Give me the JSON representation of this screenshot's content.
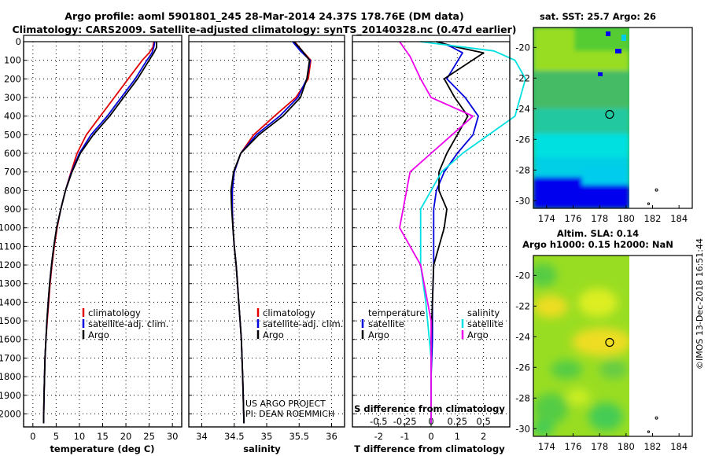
{
  "title": {
    "line1": "Argo profile: aoml 5901801_245 28-Mar-2014 24.37S 178.76E (DM data)",
    "line2": "Climatology: CARS2009. Satellite-adjusted climatology: synTS_20140328.nc (0.47d earlier)"
  },
  "credits": {
    "project": "US ARGO PROJECT",
    "pi": "PI: DEAN ROEMMICH"
  },
  "copyright": "©IMOS 13-Dec-2018 16:51:44",
  "colors": {
    "climatology": "#e00000",
    "satellite": "#0000dd",
    "argo": "#000000",
    "sat_sal": "#00e0e0",
    "argo_sal": "#ee00ee"
  },
  "chart_data": [
    {
      "type": "line",
      "name": "temperature-profile",
      "xlabel": "temperature (deg C)",
      "xlim": [
        -2,
        32
      ],
      "xticks": [
        0,
        5,
        10,
        15,
        20,
        25,
        30
      ],
      "ylim": [
        0,
        2070
      ],
      "yticks": [
        0,
        100,
        200,
        300,
        400,
        500,
        600,
        700,
        800,
        900,
        1000,
        1100,
        1200,
        1300,
        1400,
        1500,
        1600,
        1700,
        1800,
        1900,
        2000
      ],
      "legend": [
        "climatology",
        "satellite-adj. clim.",
        "Argo"
      ],
      "series": [
        {
          "name": "climatology",
          "color": "#e00000",
          "x": [
            26.0,
            25.8,
            25.0,
            23.5,
            20.5,
            17.5,
            14.5,
            11.5,
            9.5,
            8.2,
            7.0,
            6.0,
            5.2,
            4.6,
            4.1,
            3.7,
            3.4,
            3.1,
            2.8,
            2.6,
            2.4,
            2.3
          ],
          "y": [
            0,
            30,
            60,
            100,
            200,
            300,
            400,
            500,
            600,
            700,
            800,
            900,
            1000,
            1100,
            1200,
            1300,
            1400,
            1500,
            1600,
            1700,
            1900,
            2050
          ]
        },
        {
          "name": "satellite-adj. clim.",
          "color": "#0000dd",
          "x": [
            26.2,
            26.0,
            25.6,
            24.5,
            22.0,
            19.0,
            16.0,
            12.5,
            10.0,
            8.3,
            7.0,
            6.0,
            5.1,
            4.5,
            4.0,
            3.6,
            3.3,
            3.0,
            2.8,
            2.6,
            2.4,
            2.3
          ],
          "y": [
            0,
            30,
            60,
            100,
            200,
            300,
            400,
            500,
            600,
            700,
            800,
            900,
            1000,
            1100,
            1200,
            1300,
            1400,
            1500,
            1600,
            1700,
            1900,
            2050
          ]
        },
        {
          "name": "Argo",
          "color": "#000000",
          "x": [
            26.6,
            26.6,
            26.0,
            25.0,
            22.5,
            19.5,
            16.5,
            13.0,
            10.2,
            8.4,
            7.0,
            6.0,
            5.1,
            4.5,
            4.0,
            3.6,
            3.3,
            3.0,
            2.8,
            2.6,
            2.4,
            2.3
          ],
          "y": [
            0,
            30,
            60,
            100,
            200,
            300,
            400,
            500,
            600,
            700,
            800,
            900,
            1000,
            1100,
            1200,
            1300,
            1400,
            1500,
            1600,
            1700,
            1900,
            2050
          ]
        }
      ]
    },
    {
      "type": "line",
      "name": "salinity-profile",
      "xlabel": "salinity",
      "xlim": [
        33.8,
        36.2
      ],
      "xticks": [
        34,
        34.5,
        35,
        35.5,
        36
      ],
      "ylim": [
        0,
        2070
      ],
      "legend": [
        "climatology",
        "satellite-adj. clim.",
        "Argo"
      ],
      "series": [
        {
          "name": "climatology",
          "color": "#e00000",
          "x": [
            35.43,
            35.55,
            35.68,
            35.64,
            35.45,
            35.12,
            34.8,
            34.6,
            34.5,
            34.47,
            34.47,
            34.48,
            34.5,
            34.53,
            34.55,
            34.57,
            34.59,
            34.61,
            34.63,
            34.65
          ],
          "y": [
            0,
            50,
            100,
            200,
            300,
            400,
            500,
            600,
            700,
            800,
            900,
            1000,
            1100,
            1200,
            1300,
            1400,
            1500,
            1600,
            1800,
            2050
          ]
        },
        {
          "name": "satellite-adj. clim.",
          "color": "#0000dd",
          "x": [
            35.4,
            35.52,
            35.67,
            35.62,
            35.48,
            35.2,
            34.84,
            34.6,
            34.5,
            34.47,
            34.47,
            34.48,
            34.5,
            34.53,
            34.55,
            34.57,
            34.59,
            34.61,
            34.63,
            34.65
          ],
          "y": [
            0,
            50,
            100,
            200,
            300,
            400,
            500,
            600,
            700,
            800,
            900,
            1000,
            1100,
            1200,
            1300,
            1400,
            1500,
            1600,
            1800,
            2050
          ]
        },
        {
          "name": "Argo",
          "color": "#000000",
          "x": [
            35.42,
            35.55,
            35.66,
            35.62,
            35.52,
            35.25,
            34.88,
            34.6,
            34.49,
            34.45,
            34.46,
            34.48,
            34.5,
            34.53,
            34.55,
            34.57,
            34.59,
            34.61,
            34.63,
            34.65
          ],
          "y": [
            0,
            50,
            100,
            200,
            300,
            400,
            500,
            600,
            700,
            800,
            900,
            1000,
            1100,
            1200,
            1300,
            1400,
            1500,
            1600,
            1800,
            2050
          ]
        }
      ]
    },
    {
      "type": "line",
      "name": "difference-profile",
      "xlabel": "T difference from climatology",
      "xlim": [
        -3,
        3
      ],
      "xticks": [
        -2,
        -1,
        0,
        1,
        2
      ],
      "x2label": "S difference from climatology",
      "x2ticks": [
        "-0.5",
        "-0.25",
        "0",
        "0.25",
        "0.5"
      ],
      "ylim": [
        0,
        2070
      ],
      "legend": {
        "temperature_title": "temperature",
        "salinity_title": "salinity",
        "temperature": [
          "satellite",
          "Argo"
        ],
        "salinity": [
          "satellite",
          "Argo"
        ]
      },
      "series": [
        {
          "name": "T satellite",
          "color": "#0000dd",
          "x": [
            0.3,
            0.8,
            1.2,
            0.6,
            1.3,
            1.8,
            1.6,
            1.0,
            0.5,
            0.2,
            0.1,
            0.1,
            0.1,
            0.05,
            0.05,
            0.0,
            0.0
          ],
          "y": [
            0,
            30,
            60,
            200,
            300,
            400,
            500,
            600,
            700,
            800,
            900,
            1000,
            1200,
            1400,
            1600,
            1800,
            2050
          ]
        },
        {
          "name": "T Argo",
          "color": "#000000",
          "x": [
            0.2,
            1.0,
            2.0,
            0.5,
            0.9,
            1.4,
            1.0,
            0.6,
            0.3,
            0.3,
            0.6,
            0.5,
            0.1,
            0.05,
            0.0,
            0.0,
            0.0
          ],
          "y": [
            0,
            30,
            60,
            200,
            300,
            400,
            500,
            600,
            700,
            800,
            900,
            1000,
            1200,
            1400,
            1600,
            1800,
            2050
          ]
        },
        {
          "name": "S satellite",
          "color": "#00e0e0",
          "x": [
            -0.1,
            0.6,
            0.8,
            0.9,
            0.8,
            0.3,
            0.1,
            0.0,
            -0.1,
            -0.1,
            -0.1,
            -0.05,
            0.0,
            0.0
          ],
          "y": [
            0,
            50,
            100,
            200,
            400,
            600,
            700,
            800,
            900,
            1000,
            1200,
            1400,
            1700,
            2050
          ]
        },
        {
          "name": "S Argo",
          "color": "#ee00ee",
          "x": [
            -0.3,
            -0.2,
            -0.1,
            0.0,
            0.4,
            0.2,
            0.0,
            -0.2,
            -0.3,
            -0.1,
            0.0,
            0.0
          ],
          "y": [
            0,
            80,
            200,
            300,
            400,
            500,
            600,
            700,
            1000,
            1200,
            1500,
            2050
          ]
        }
      ]
    },
    {
      "type": "heatmap",
      "name": "sst-map",
      "title": "sat. SST: 25.7 Argo: 26",
      "xticks": [
        174,
        176,
        178,
        180,
        182,
        184
      ],
      "yticks": [
        -20,
        -22,
        -24,
        -26,
        -28,
        -30
      ],
      "xlim": [
        173,
        185
      ],
      "ylim": [
        -30.5,
        -18.7
      ],
      "argo_position": {
        "lon": 178.76,
        "lat": -24.37
      }
    },
    {
      "type": "heatmap",
      "name": "sla-map",
      "title": "Altim. SLA: 0.14",
      "subtitle": "Argo h1000: 0.15 h2000: NaN",
      "xticks": [
        174,
        176,
        178,
        180,
        182,
        184
      ],
      "yticks": [
        -20,
        -22,
        -24,
        -26,
        -28,
        -30
      ],
      "xlim": [
        173,
        185
      ],
      "ylim": [
        -30.5,
        -18.7
      ],
      "argo_position": {
        "lon": 178.76,
        "lat": -24.37
      }
    }
  ]
}
